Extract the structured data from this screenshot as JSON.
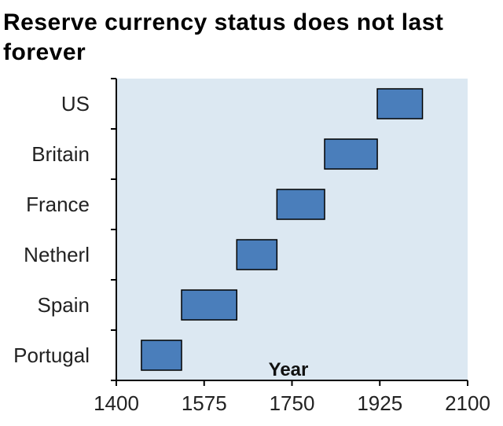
{
  "title": "Reserve currency status does not last forever",
  "chart_data": {
    "type": "bar",
    "orientation": "horizontal-range",
    "title": "Reserve currency status does not last forever",
    "xlabel": "Year",
    "ylabel": "",
    "xlim": [
      1400,
      2100
    ],
    "xticks": [
      1400,
      1575,
      1750,
      1925,
      2100
    ],
    "categories": [
      "US",
      "Britain",
      "France",
      "Netherl",
      "Spain",
      "Portugal"
    ],
    "ranges": [
      {
        "category": "US",
        "start": 1920,
        "end": 2010
      },
      {
        "category": "Britain",
        "start": 1815,
        "end": 1920
      },
      {
        "category": "France",
        "start": 1720,
        "end": 1815
      },
      {
        "category": "Netherl",
        "start": 1640,
        "end": 1720
      },
      {
        "category": "Spain",
        "start": 1530,
        "end": 1640
      },
      {
        "category": "Portugal",
        "start": 1450,
        "end": 1530
      }
    ],
    "colors": {
      "bar_fill": "#4a7ebb",
      "bar_stroke": "#000000",
      "plot_bg": "#dce8f2"
    },
    "grid": false,
    "legend": "none"
  }
}
